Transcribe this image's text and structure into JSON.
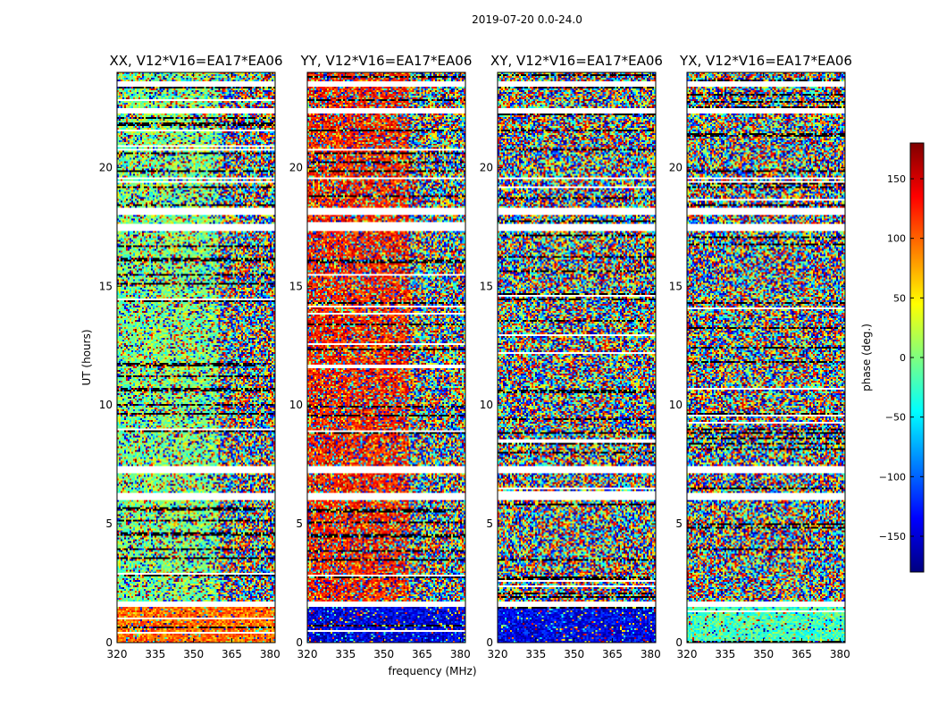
{
  "chart_data": {
    "type": "heatmap",
    "title": "2019-07-20 0.0-24.0",
    "xlabel": "frequency (MHz)",
    "ylabel": "UT (hours)",
    "x_range": [
      320,
      382
    ],
    "y_range": [
      0,
      24
    ],
    "x_ticks": [
      320,
      335,
      350,
      365,
      380
    ],
    "y_ticks": [
      0,
      5,
      10,
      15,
      20
    ],
    "colorbar": {
      "label": "phase (deg.)",
      "range": [
        -180,
        180
      ],
      "ticks": [
        -150,
        -100,
        -50,
        0,
        50,
        100,
        150
      ],
      "ticks_text": [
        "−150",
        "−100",
        "−50",
        "0",
        "50",
        "100",
        "150"
      ],
      "colormap": "jet",
      "colors": [
        "#00007f",
        "#0000ff",
        "#007fff",
        "#00ffff",
        "#7fff7f",
        "#ffff00",
        "#ff7f00",
        "#ff0000",
        "#7f0000"
      ]
    },
    "panels": [
      {
        "title": "XX, V12*V16=EA17*EA06",
        "dominant_phase_deg": {
          "0-1.5": 95,
          "1.5-24": 0
        },
        "coherent_band_mhz": [
          320,
          360
        ]
      },
      {
        "title": "YY, V12*V16=EA17*EA06",
        "dominant_phase_deg": {
          "0-1.5": -145,
          "1.5-24": 125
        },
        "coherent_band_mhz": [
          320,
          360
        ]
      },
      {
        "title": "XY, V12*V16=EA17*EA06",
        "dominant_phase_deg": {
          "0-1.5": -140,
          "1.5-24": "random"
        },
        "coherent_band_mhz": []
      },
      {
        "title": "YX, V12*V16=EA17*EA06",
        "dominant_phase_deg": {
          "0-1.5": -20,
          "1.5-24": "random"
        },
        "coherent_band_mhz": []
      }
    ],
    "flagged_ut_hours": [
      [
        1.5,
        1.75
      ],
      [
        6.0,
        6.3
      ],
      [
        7.1,
        7.4
      ],
      [
        17.3,
        17.6
      ],
      [
        18.0,
        18.3
      ],
      [
        19.5,
        19.6
      ],
      [
        22.3,
        22.5
      ],
      [
        23.4,
        23.6
      ]
    ]
  }
}
